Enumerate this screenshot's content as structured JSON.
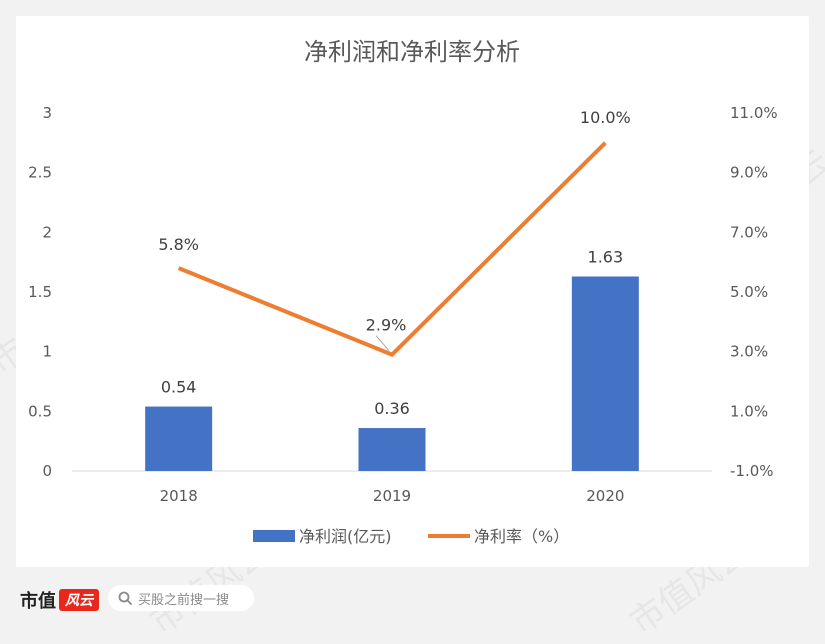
{
  "chart_data": {
    "type": "bar+line",
    "title": "净利润和净利率分析",
    "categories": [
      "2018",
      "2019",
      "2020"
    ],
    "series": [
      {
        "name": "净利润(亿元)",
        "type": "bar",
        "axis": "left",
        "color": "#4472c4",
        "values": [
          0.54,
          0.36,
          1.63
        ],
        "labels": [
          "0.54",
          "0.36",
          "1.63"
        ]
      },
      {
        "name": "净利率（%）",
        "type": "line",
        "axis": "right",
        "color": "#ed7d31",
        "values": [
          5.8,
          2.9,
          10.0
        ],
        "labels": [
          "5.8%",
          "2.9%",
          "10.0%"
        ]
      }
    ],
    "y_left": {
      "min": 0,
      "max": 3,
      "ticks": [
        "0",
        "0.5",
        "1",
        "1.5",
        "2",
        "2.5",
        "3"
      ]
    },
    "y_right": {
      "min": -1,
      "max": 11,
      "ticks": [
        "-1.0%",
        "1.0%",
        "3.0%",
        "5.0%",
        "7.0%",
        "9.0%",
        "11.0%"
      ]
    },
    "grid": false,
    "legend": "bottom"
  },
  "footer": {
    "brand": "市值",
    "brand_badge": "风云",
    "search_placeholder": "买股之前搜一搜"
  },
  "watermark_text": "市值风云",
  "colors": {
    "background": "#f2f2f2",
    "bar": "#4472c4",
    "line": "#ed7d31",
    "axis_text": "#595959"
  }
}
